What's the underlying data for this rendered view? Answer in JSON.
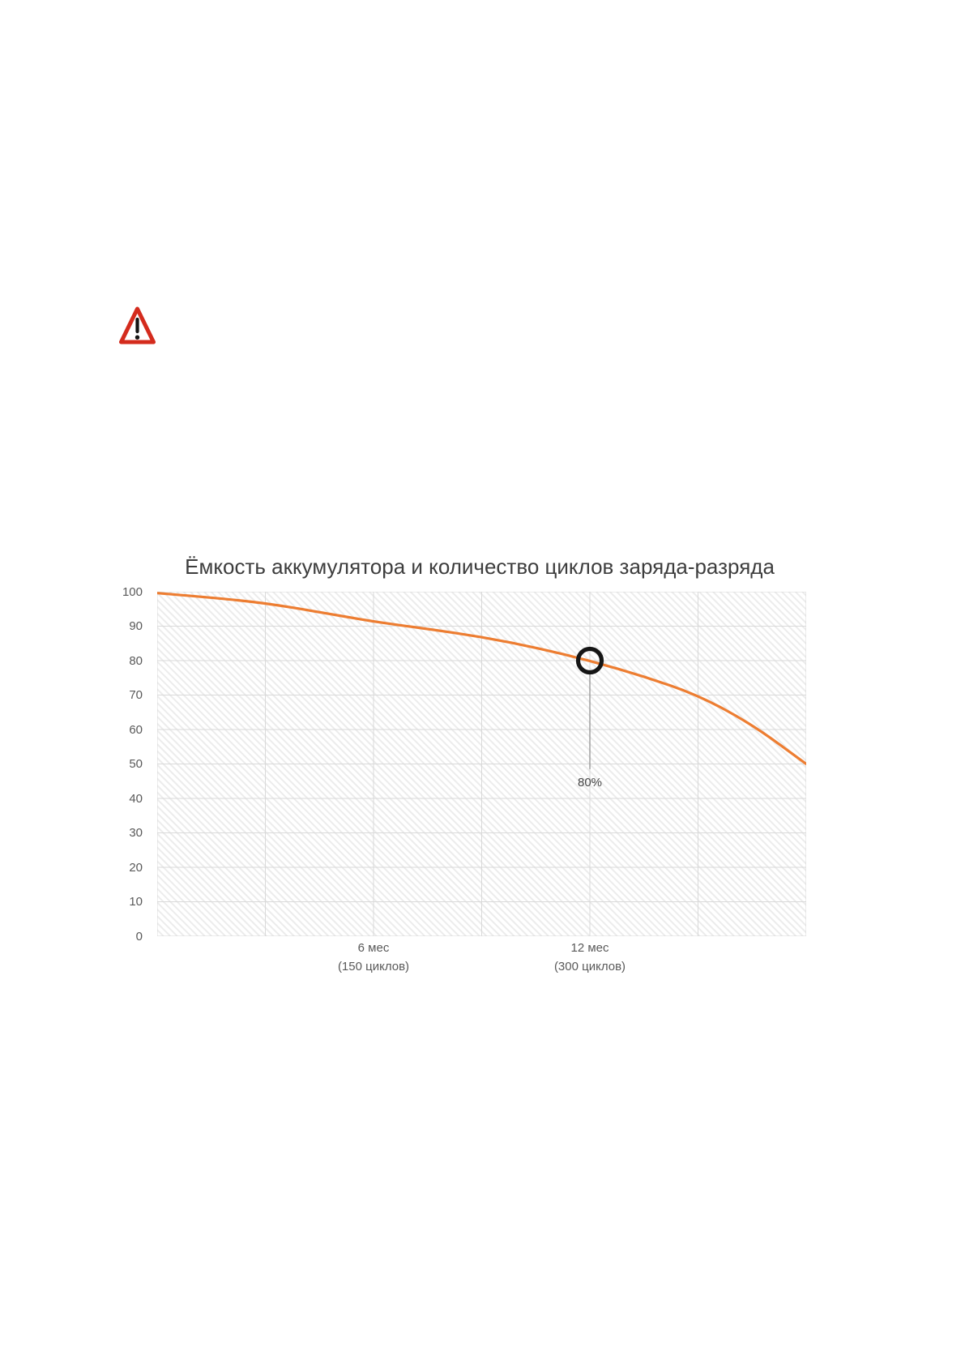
{
  "warning": {
    "shape": "rounded-triangle",
    "border_color": "#d42b1d",
    "fill_color": "#ffffff",
    "mark_color": "#141414"
  },
  "chart_data": {
    "type": "line",
    "title": "Ёмкость аккумулятора и количество циклов заряда-разряда",
    "xlabel": "",
    "ylabel": "",
    "x_range": [
      0,
      18
    ],
    "y_range": [
      0,
      100
    ],
    "y_ticks": [
      100,
      90,
      80,
      70,
      60,
      50,
      40,
      30,
      20,
      10,
      0
    ],
    "x_gridline_months": [
      0,
      3,
      6,
      9,
      12,
      15,
      18
    ],
    "x_tick_labels": [
      {
        "month": 6,
        "line1": "6 мес",
        "line2": "(150 циклов)"
      },
      {
        "month": 12,
        "line1": "12 мес",
        "line2": "(300 циклов)"
      }
    ],
    "series": [
      {
        "name": "battery-capacity-percent",
        "color": "#ED7D31",
        "points": [
          [
            0,
            99.6
          ],
          [
            1.5,
            98.3
          ],
          [
            3,
            96.7
          ],
          [
            4.5,
            94.1
          ],
          [
            6,
            91.3
          ],
          [
            7.5,
            89.2
          ],
          [
            9,
            86.9
          ],
          [
            10.5,
            83.8
          ],
          [
            12,
            80
          ],
          [
            13.5,
            75.4
          ],
          [
            15,
            70
          ],
          [
            16.5,
            61.5
          ],
          [
            18,
            50
          ]
        ]
      }
    ],
    "annotation": {
      "month": 12,
      "value": 80,
      "label": "80%",
      "marker": "black-ring",
      "marker_color": "#151515",
      "callout_line_color": "#9a9a9a",
      "callout_line_end_value": 48.5
    },
    "grid": true,
    "grid_color": "#d9d9d9",
    "hatch_background": true,
    "hatch_color": "#ececec",
    "legend": "none"
  }
}
